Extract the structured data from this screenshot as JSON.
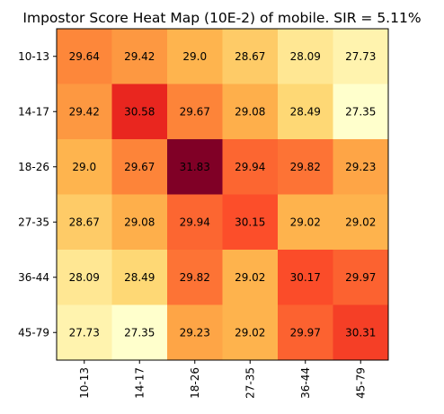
{
  "chart_data": {
    "type": "heatmap",
    "title": "Impostor Score Heat Map (10E-2) of mobile. SIR = 5.11%",
    "x_categories": [
      "10-13",
      "14-17",
      "18-26",
      "27-35",
      "36-44",
      "45-79"
    ],
    "y_categories": [
      "10-13",
      "14-17",
      "18-26",
      "27-35",
      "36-44",
      "45-79"
    ],
    "values": [
      [
        29.64,
        29.42,
        29.0,
        28.67,
        28.09,
        27.73
      ],
      [
        29.42,
        30.58,
        29.67,
        29.08,
        28.49,
        27.35
      ],
      [
        29.0,
        29.67,
        31.83,
        29.94,
        29.82,
        29.23
      ],
      [
        28.67,
        29.08,
        29.94,
        30.15,
        29.02,
        29.02
      ],
      [
        28.09,
        28.49,
        29.82,
        29.02,
        30.17,
        29.97
      ],
      [
        27.73,
        27.35,
        29.23,
        29.02,
        29.97,
        30.31
      ]
    ],
    "value_labels": [
      [
        "29.64",
        "29.42",
        "29.0",
        "28.67",
        "28.09",
        "27.73"
      ],
      [
        "29.42",
        "30.58",
        "29.67",
        "29.08",
        "28.49",
        "27.35"
      ],
      [
        "29.0",
        "29.67",
        "31.83",
        "29.94",
        "29.82",
        "29.23"
      ],
      [
        "28.67",
        "29.08",
        "29.94",
        "30.15",
        "29.02",
        "29.02"
      ],
      [
        "28.09",
        "28.49",
        "29.82",
        "29.02",
        "30.17",
        "29.97"
      ],
      [
        "27.73",
        "27.35",
        "29.23",
        "29.02",
        "29.97",
        "30.31"
      ]
    ],
    "colormap": "YlOrRd",
    "vmin": 27.35,
    "vmax": 31.83,
    "grid": false,
    "legend": "none"
  }
}
